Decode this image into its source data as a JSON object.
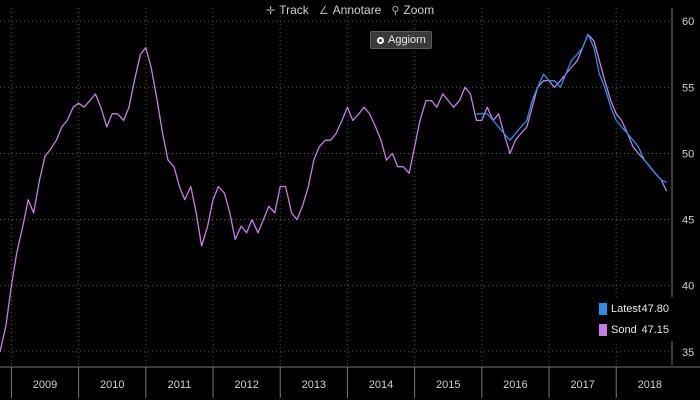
{
  "toolbar": {
    "track": "Track",
    "annotate": "Annotare",
    "zoom": "Zoom",
    "refresh": "Aggiorn"
  },
  "colors": {
    "latest": "#2a8fe6",
    "sond": "#c77de8",
    "grid": "#555555",
    "axis_text": "#d0d0d0"
  },
  "chart_data": {
    "type": "line",
    "x_range": [
      2008.83,
      2018.83
    ],
    "ylim": [
      34,
      61
    ],
    "yticks": [
      35,
      40,
      45,
      50,
      55,
      60
    ],
    "xtick_labels": [
      "2009",
      "2010",
      "2011",
      "2012",
      "2013",
      "2014",
      "2015",
      "2016",
      "2017",
      "2018"
    ],
    "legend_position": "bottom-right",
    "series": [
      {
        "name": "Sond",
        "last_value": "47.15",
        "points": [
          [
            2008.83,
            35.0
          ],
          [
            2008.92,
            37.0
          ],
          [
            2009.0,
            40.0
          ],
          [
            2009.08,
            42.5
          ],
          [
            2009.17,
            44.5
          ],
          [
            2009.25,
            46.5
          ],
          [
            2009.33,
            45.5
          ],
          [
            2009.42,
            48.0
          ],
          [
            2009.5,
            49.8
          ],
          [
            2009.58,
            50.3
          ],
          [
            2009.67,
            51.0
          ],
          [
            2009.75,
            52.0
          ],
          [
            2009.83,
            52.5
          ],
          [
            2009.92,
            53.5
          ],
          [
            2010.0,
            53.8
          ],
          [
            2010.08,
            53.5
          ],
          [
            2010.17,
            54.0
          ],
          [
            2010.25,
            54.5
          ],
          [
            2010.33,
            53.5
          ],
          [
            2010.42,
            52.0
          ],
          [
            2010.5,
            53.0
          ],
          [
            2010.58,
            53.0
          ],
          [
            2010.67,
            52.5
          ],
          [
            2010.75,
            53.5
          ],
          [
            2010.83,
            55.5
          ],
          [
            2010.92,
            57.5
          ],
          [
            2011.0,
            58.0
          ],
          [
            2011.08,
            56.5
          ],
          [
            2011.17,
            54.0
          ],
          [
            2011.25,
            51.5
          ],
          [
            2011.33,
            49.5
          ],
          [
            2011.42,
            49.0
          ],
          [
            2011.5,
            47.5
          ],
          [
            2011.58,
            46.5
          ],
          [
            2011.67,
            47.5
          ],
          [
            2011.75,
            45.5
          ],
          [
            2011.83,
            43.0
          ],
          [
            2011.92,
            44.5
          ],
          [
            2012.0,
            46.5
          ],
          [
            2012.08,
            47.5
          ],
          [
            2012.17,
            47.0
          ],
          [
            2012.25,
            45.5
          ],
          [
            2012.33,
            43.5
          ],
          [
            2012.42,
            44.5
          ],
          [
            2012.5,
            44.0
          ],
          [
            2012.58,
            45.0
          ],
          [
            2012.67,
            44.0
          ],
          [
            2012.75,
            45.0
          ],
          [
            2012.83,
            46.0
          ],
          [
            2012.92,
            45.5
          ],
          [
            2013.0,
            47.5
          ],
          [
            2013.08,
            47.5
          ],
          [
            2013.17,
            45.5
          ],
          [
            2013.25,
            45.0
          ],
          [
            2013.33,
            46.0
          ],
          [
            2013.42,
            47.5
          ],
          [
            2013.5,
            49.5
          ],
          [
            2013.58,
            50.5
          ],
          [
            2013.67,
            51.0
          ],
          [
            2013.75,
            51.0
          ],
          [
            2013.83,
            51.5
          ],
          [
            2013.92,
            52.5
          ],
          [
            2014.0,
            53.5
          ],
          [
            2014.08,
            52.5
          ],
          [
            2014.17,
            53.0
          ],
          [
            2014.25,
            53.5
          ],
          [
            2014.33,
            53.0
          ],
          [
            2014.42,
            52.0
          ],
          [
            2014.5,
            51.0
          ],
          [
            2014.58,
            49.5
          ],
          [
            2014.67,
            50.0
          ],
          [
            2014.75,
            49.0
          ],
          [
            2014.83,
            49.0
          ],
          [
            2014.92,
            48.5
          ],
          [
            2015.0,
            50.5
          ],
          [
            2015.08,
            52.5
          ],
          [
            2015.17,
            54.0
          ],
          [
            2015.25,
            54.0
          ],
          [
            2015.33,
            53.5
          ],
          [
            2015.42,
            54.5
          ],
          [
            2015.5,
            54.0
          ],
          [
            2015.58,
            53.5
          ],
          [
            2015.67,
            54.0
          ],
          [
            2015.75,
            55.0
          ],
          [
            2015.83,
            54.5
          ],
          [
            2015.92,
            52.5
          ],
          [
            2016.0,
            52.5
          ],
          [
            2016.08,
            53.5
          ],
          [
            2016.17,
            52.5
          ],
          [
            2016.25,
            53.0
          ],
          [
            2016.33,
            51.5
          ],
          [
            2016.42,
            50.0
          ],
          [
            2016.5,
            51.0
          ],
          [
            2016.58,
            51.5
          ],
          [
            2016.67,
            52.0
          ],
          [
            2016.75,
            53.5
          ],
          [
            2016.83,
            55.0
          ],
          [
            2016.92,
            55.5
          ],
          [
            2017.0,
            55.5
          ],
          [
            2017.08,
            55.0
          ],
          [
            2017.17,
            55.5
          ],
          [
            2017.25,
            56.0
          ],
          [
            2017.33,
            56.5
          ],
          [
            2017.42,
            57.0
          ],
          [
            2017.5,
            58.0
          ],
          [
            2017.58,
            59.0
          ],
          [
            2017.67,
            58.5
          ],
          [
            2017.75,
            57.0
          ],
          [
            2017.83,
            55.5
          ],
          [
            2017.92,
            54.0
          ],
          [
            2018.0,
            53.0
          ],
          [
            2018.08,
            52.5
          ],
          [
            2018.17,
            51.5
          ],
          [
            2018.25,
            50.5
          ],
          [
            2018.33,
            50.0
          ],
          [
            2018.42,
            49.5
          ],
          [
            2018.5,
            49.0
          ],
          [
            2018.58,
            48.5
          ],
          [
            2018.67,
            48.0
          ],
          [
            2018.75,
            47.15
          ]
        ]
      },
      {
        "name": "Latest",
        "last_value": "47.80",
        "points": [
          [
            2015.92,
            53.0
          ],
          [
            2016.0,
            53.0
          ],
          [
            2016.08,
            53.0
          ],
          [
            2016.17,
            52.5
          ],
          [
            2016.25,
            52.0
          ],
          [
            2016.33,
            51.5
          ],
          [
            2016.42,
            51.0
          ],
          [
            2016.5,
            51.5
          ],
          [
            2016.58,
            52.0
          ],
          [
            2016.67,
            52.5
          ],
          [
            2016.75,
            54.0
          ],
          [
            2016.83,
            55.0
          ],
          [
            2016.92,
            56.0
          ],
          [
            2017.0,
            55.5
          ],
          [
            2017.08,
            55.5
          ],
          [
            2017.17,
            55.0
          ],
          [
            2017.25,
            56.0
          ],
          [
            2017.33,
            57.0
          ],
          [
            2017.42,
            57.5
          ],
          [
            2017.5,
            58.0
          ],
          [
            2017.58,
            59.0
          ],
          [
            2017.67,
            58.0
          ],
          [
            2017.75,
            56.0
          ],
          [
            2017.83,
            55.0
          ],
          [
            2017.92,
            53.5
          ],
          [
            2018.0,
            52.5
          ],
          [
            2018.08,
            52.0
          ],
          [
            2018.17,
            51.5
          ],
          [
            2018.25,
            51.0
          ],
          [
            2018.33,
            50.5
          ],
          [
            2018.42,
            49.5
          ],
          [
            2018.5,
            49.0
          ],
          [
            2018.58,
            48.5
          ],
          [
            2018.67,
            48.0
          ],
          [
            2018.75,
            47.8
          ]
        ]
      }
    ]
  }
}
